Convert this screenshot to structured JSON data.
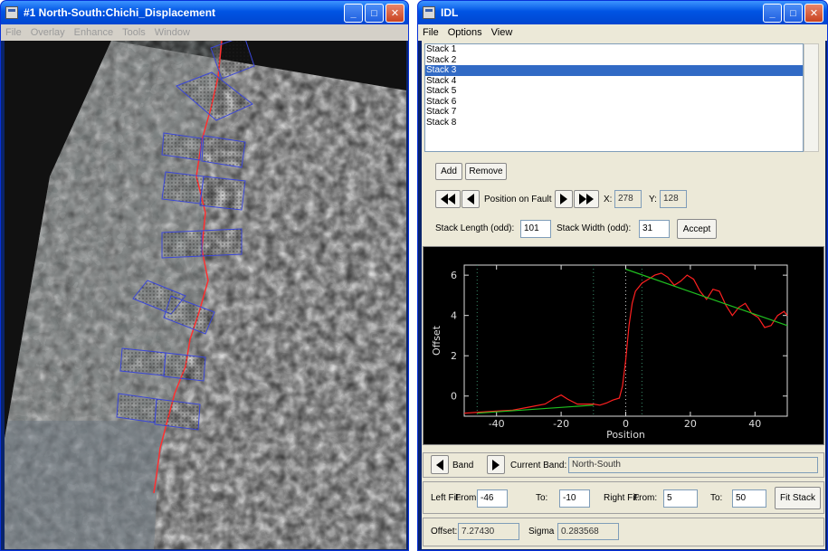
{
  "window1": {
    "title": "#1 North-South:Chichi_Displacement",
    "menu": [
      "File",
      "Overlay",
      "Enhance",
      "Tools",
      "Window"
    ]
  },
  "window2": {
    "title": "IDL",
    "menu": [
      "File",
      "Options",
      "View"
    ],
    "stacks": [
      "Stack 1",
      "Stack 2",
      "Stack 3",
      "Stack 4",
      "Stack 5",
      "Stack 6",
      "Stack 7",
      "Stack 8"
    ],
    "selected_stack": "Stack 3",
    "buttons": {
      "add": "Add",
      "remove": "Remove",
      "accept": "Accept",
      "fit_stack": "Fit Stack"
    },
    "position_label": "Position on Fault",
    "x_label": "X:",
    "x_value": "278",
    "y_label": "Y:",
    "y_value": "128",
    "stack_length_label": "Stack Length (odd):",
    "stack_length_value": "101",
    "stack_width_label": "Stack Width (odd):",
    "stack_width_value": "31",
    "band_label": "Band",
    "current_band_label": "Current Band:",
    "current_band_value": "North-South",
    "left_fit_label": "Left Fit:",
    "left_from_label": "From:",
    "left_from_value": "-46",
    "left_to_label": "To:",
    "left_to_value": "-10",
    "right_fit_label": "Right Fit:",
    "right_from_label": "From:",
    "right_from_value": "5",
    "right_to_label": "To:",
    "right_to_value": "50",
    "offset_label": "Offset:",
    "offset_value": "7.27430",
    "sigma_label": "Sigma",
    "sigma_value": "0.283568"
  },
  "chart_data": {
    "type": "line",
    "xlabel": "Position",
    "ylabel": "Offset",
    "xlim": [
      -50,
      50
    ],
    "ylim": [
      -1,
      6.5
    ],
    "xticks": [
      -40,
      -20,
      0,
      20,
      40
    ],
    "yticks": [
      0,
      2,
      4,
      6
    ],
    "series": [
      {
        "color": "#ff2020",
        "x": [
          -50,
          -45,
          -40,
          -35,
          -30,
          -25,
          -22,
          -20,
          -18,
          -15,
          -12,
          -10,
          -8,
          -6,
          -4,
          -2,
          -1,
          0,
          1,
          2,
          3,
          5,
          7,
          9,
          11,
          13,
          15,
          17,
          19,
          21,
          23,
          25,
          27,
          29,
          31,
          33,
          35,
          37,
          39,
          41,
          43,
          45,
          47,
          49,
          50
        ],
        "y": [
          -0.85,
          -0.8,
          -0.75,
          -0.7,
          -0.55,
          -0.4,
          -0.1,
          0.05,
          -0.15,
          -0.4,
          -0.4,
          -0.4,
          -0.45,
          -0.35,
          -0.2,
          -0.1,
          0.5,
          1.8,
          3.5,
          4.6,
          5.2,
          5.6,
          5.8,
          6.0,
          6.1,
          5.9,
          5.5,
          5.7,
          6.0,
          5.8,
          5.2,
          4.8,
          5.3,
          5.2,
          4.5,
          4.0,
          4.4,
          4.6,
          4.1,
          3.9,
          3.4,
          3.5,
          4.0,
          4.2,
          4.0
        ]
      },
      {
        "color": "#20c020",
        "x": [
          -46,
          -10
        ],
        "y": [
          -0.85,
          -0.45
        ]
      },
      {
        "color": "#20c020",
        "x": [
          0,
          50
        ],
        "y": [
          6.3,
          3.5
        ]
      }
    ],
    "vlines": [
      -46,
      -10,
      0,
      5
    ]
  },
  "colors": {
    "title_blue": "#0054e3",
    "selection": "#316ac5",
    "fault": "#ff3030",
    "stack_box": "#3a46d8",
    "signal": "#ff2020",
    "fit": "#20c020"
  }
}
